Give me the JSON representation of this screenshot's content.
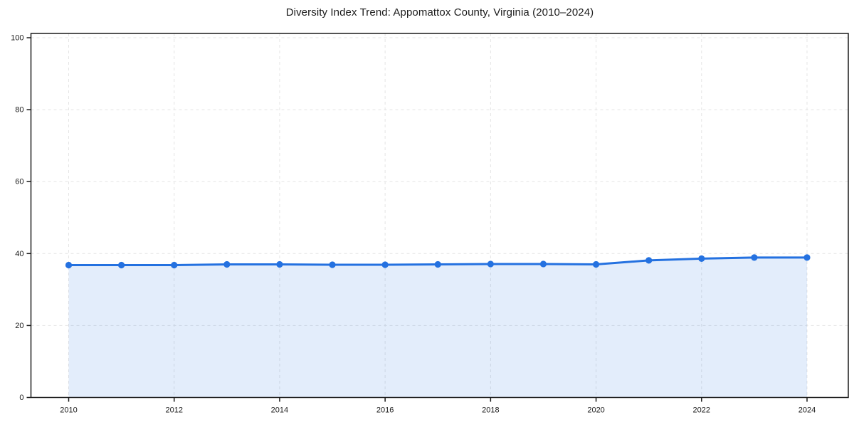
{
  "title": "Diversity Index Trend: Appomattox County, Virginia (2010–2024)",
  "chart_data": {
    "type": "area",
    "title": "Diversity Index Trend: Appomattox County, Virginia (2010–2024)",
    "x": [
      2010,
      2011,
      2012,
      2013,
      2014,
      2015,
      2016,
      2017,
      2018,
      2019,
      2020,
      2021,
      2022,
      2023,
      2024
    ],
    "series": [
      {
        "name": "Diversity Index",
        "values": [
          36.8,
          36.8,
          36.8,
          37.0,
          37.0,
          36.9,
          36.9,
          37.0,
          37.1,
          37.1,
          37.0,
          38.1,
          38.6,
          38.9,
          38.9
        ]
      }
    ],
    "xlabel": "",
    "ylabel": "",
    "ylim": [
      0,
      100
    ],
    "yticks": [
      0,
      20,
      40,
      60,
      80,
      100
    ],
    "xticks": [
      2010,
      2012,
      2014,
      2016,
      2018,
      2020,
      2022,
      2024
    ],
    "grid": true,
    "grid_style": "dashed",
    "legend": false,
    "marker": "circle",
    "colors": {
      "line": "#2471e0",
      "fill": "rgba(36,113,224,0.13)",
      "marker": "#2471e0",
      "grid": "#e4e4e4",
      "axis": "#1a1a1a",
      "text": "#1a1a1a",
      "background": "#ffffff"
    }
  }
}
